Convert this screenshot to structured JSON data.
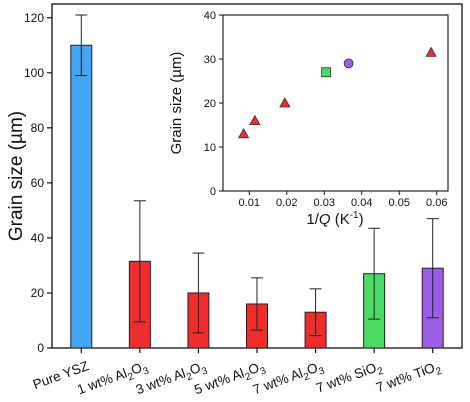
{
  "chart_data": [
    {
      "type": "bar",
      "title": "",
      "ylabel": "Grain size (µm)",
      "xlabel": "",
      "ylim": [
        0,
        125
      ],
      "yticks": [
        "0",
        "20",
        "40",
        "60",
        "80",
        "100",
        "120"
      ],
      "categories": [
        {
          "label": "Pure YSZ",
          "pre": "Pure YSZ",
          "sub": "",
          "post": ""
        },
        {
          "label": "1 wt% Al2O3",
          "pre": "1 wt% Al",
          "sub": "2",
          "post": "O",
          "sub2": "3"
        },
        {
          "label": "3 wt% Al2O3",
          "pre": "3 wt% Al",
          "sub": "2",
          "post": "O",
          "sub2": "3"
        },
        {
          "label": "5 wt% Al2O3",
          "pre": "5 wt% Al",
          "sub": "2",
          "post": "O",
          "sub2": "3"
        },
        {
          "label": "7 wt% Al2O3",
          "pre": "7 wt% Al",
          "sub": "2",
          "post": "O",
          "sub2": "3"
        },
        {
          "label": "7 wt% SiO2",
          "pre": "7 wt% SiO",
          "sub": "2",
          "post": "",
          "sub2": ""
        },
        {
          "label": "7 wt% TiO2",
          "pre": "7 wt% TiO",
          "sub": "2",
          "post": "",
          "sub2": ""
        }
      ],
      "values": [
        110,
        31.5,
        20,
        16,
        13,
        27,
        29
      ],
      "error": [
        11,
        22,
        14.5,
        9.5,
        8.5,
        16.5,
        18
      ],
      "colors": [
        "#42a5f5",
        "#ef2d2d",
        "#ef2d2d",
        "#ef2d2d",
        "#ef2d2d",
        "#4cd964",
        "#9b5de5"
      ],
      "grid": false
    },
    {
      "type": "scatter",
      "inset": true,
      "title": "",
      "ylabel": "Grain size (µm)",
      "xlabel_pre": "1/",
      "xlabel_italic": "Q",
      "xlabel_post": " (K",
      "xlabel_sup": "-1",
      "xlabel_end": ")",
      "xlim": [
        0.003,
        0.063
      ],
      "ylim": [
        0,
        40
      ],
      "xticks": [
        "0.01",
        "0.02",
        "0.03",
        "0.04",
        "0.05",
        "0.06"
      ],
      "yticks": [
        "0",
        "10",
        "20",
        "30",
        "40"
      ],
      "series": [
        {
          "marker": "triangle",
          "color": "#ef2d2d",
          "points": [
            [
              0.0085,
              13
            ],
            [
              0.0115,
              16
            ],
            [
              0.0195,
              20
            ],
            [
              0.0585,
              31.5
            ]
          ]
        },
        {
          "marker": "square",
          "color": "#4cd964",
          "points": [
            [
              0.0305,
              27
            ]
          ]
        },
        {
          "marker": "circle",
          "color": "#9b5de5",
          "points": [
            [
              0.0365,
              29
            ]
          ]
        }
      ],
      "grid": false
    }
  ]
}
